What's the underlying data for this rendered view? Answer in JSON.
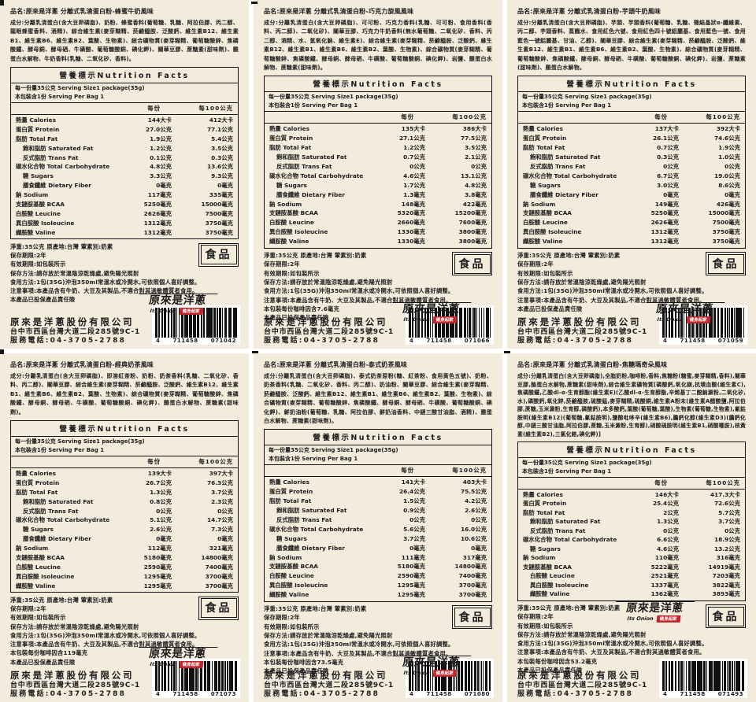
{
  "company": {
    "name": "原來是洋蔥股份有限公司",
    "address": "台中市西區台灣大道二段285號9C-1",
    "phone": "服務電話:04-3705-2788"
  },
  "logo": {
    "zh": "原來是洋蔥",
    "en": "Its Onion",
    "badge": "健身起家"
  },
  "food_badge": "食品",
  "table_header": {
    "title": "營養標示Nutrition Facts",
    "serving_line1": "每一份量35公克 Serving Size1 package(35g)",
    "serving_line2": "本包裝含1份 Serving Per Bag 1",
    "col_per_serving": "每份",
    "col_per_100g": "每100公克"
  },
  "common": {
    "net_weight": "淨重:35公克 原產地:台灣 葷素別:奶素",
    "shelf_life": "保存期限:2年",
    "expiry": "有效期限:如包裝所示",
    "storage": "保存方法:請存放於常溫陰涼乾燥處,避免陽光照射",
    "usage": "食用方法:1包(35G)沖泡350ml常溫水或冷開水,可依照個人喜好調整。",
    "warning": "注意事項:本產品含有牛奶、大豆及其製品,不適合對其過敏體質者食用。",
    "insurance": "本產品已投保產品責任險"
  },
  "labels": [
    {
      "product_name": "品名:原來是洋蔥 分離式乳清蛋白粉-蜂蜜牛奶風味",
      "ingredients": "成分:分離乳清蛋白(含大豆卵磷脂)、奶粉、蜂蜜香料(葡萄糖、乳糖、阿拉伯膠、丙二醇、龍眼蜂蜜香料、酒精)、綜合維生素(麥芽糊精、菸鹼醯胺、泛酸鈣、維生素B12、維生素B1、維生素B6、維生素B2、葉酸、生物素)、綜合礦物質(麥芽糊精、葡萄糖酸鋅、焦磷酸鐵、酵母銅、酵母硒、牛磺酸、葡萄糖酸銅、碘化鉀)、關華豆膠、蔗糖素(甜味劑)、雞蛋白水解物、牛奶香料(乳糖、二氧化矽、香料)。",
      "caffeine": null,
      "barcode": "4711458071042",
      "barcode_groups": [
        "4",
        "711458",
        "071042"
      ],
      "rows": [
        {
          "name": "熱量 Calories",
          "v1": "144大卡",
          "v2": "412大卡",
          "indent": false
        },
        {
          "name": "蛋白質 Protein",
          "v1": "27.0公克",
          "v2": "77.1公克",
          "indent": false
        },
        {
          "name": "脂肪 Total Fat",
          "v1": "1.9公克",
          "v2": "5.4公克",
          "indent": false
        },
        {
          "name": "飽和脂肪 Saturated Fat",
          "v1": "1.2公克",
          "v2": "3.5公克",
          "indent": true
        },
        {
          "name": "反式脂肪 Trans Fat",
          "v1": "0.1公克",
          "v2": "0.3公克",
          "indent": true
        },
        {
          "name": "碳水化合物 Total Carbohydrate",
          "v1": "4.8公克",
          "v2": "13.6公克",
          "indent": false
        },
        {
          "name": "糖 Sugars",
          "v1": "3.3公克",
          "v2": "9.3公克",
          "indent": true
        },
        {
          "name": "膳食纖維 Dietary Fiber",
          "v1": "0毫克",
          "v2": "0毫克",
          "indent": true
        },
        {
          "name": "鈉 Sodium",
          "v1": "117毫克",
          "v2": "335毫克",
          "indent": false
        },
        {
          "name": "支鏈胺基酸 BCAA",
          "v1": "5250毫克",
          "v2": "15000毫克",
          "indent": false
        },
        {
          "name": "白胺酸 Leucine",
          "v1": "2626毫克",
          "v2": "7500毫克",
          "indent": false
        },
        {
          "name": "異白胺酸 Isoleucine",
          "v1": "1312毫克",
          "v2": "3750毫克",
          "indent": false
        },
        {
          "name": "纈胺酸 Valine",
          "v1": "1312毫克",
          "v2": "3750毫克",
          "indent": false
        }
      ]
    },
    {
      "product_name": "品名:原來是洋蔥 分離式乳清蛋白粉-巧克力旋風風味",
      "ingredients": "成分:分離乳清蛋白(含大豆卵磷脂)、可可粉、巧克力香料(乳糖、可可粉、食用香料(香料、丙二醇)、二氧化矽)、關華豆膠、巧克力牛奶香料(無水葡萄糖、二氧化矽、香料、丙二醇、酒精、水、氫氧化鈉、維生素E)、綜合維生素(麥芽糊精、菸鹼醯胺、泛酸鈣、維生素B12、維生素B1、維生素B6、維生素B2、葉酸、生物素)、綜合礦物質(麥芽糊精、葡萄糖酸鋅、焦磷酸鐵、酵母銅、酵母硒、牛磺酸、葡萄糖酸銅、碘化鉀)、岩鹽、雞蛋白水解物、蔗糖素(甜味劑)。",
      "caffeine": "本包裝每份咖啡因含7.6毫克",
      "barcode": "4711458071066",
      "barcode_groups": [
        "4",
        "711458",
        "071066"
      ],
      "rows": [
        {
          "name": "熱量 Calories",
          "v1": "135大卡",
          "v2": "386大卡",
          "indent": false
        },
        {
          "name": "蛋白質 Protein",
          "v1": "27.1公克",
          "v2": "77.5公克",
          "indent": false
        },
        {
          "name": "脂肪 Total Fat",
          "v1": "1.2公克",
          "v2": "3.5公克",
          "indent": false
        },
        {
          "name": "飽和脂肪 Saturated Fat",
          "v1": "0.7公克",
          "v2": "2.1公克",
          "indent": true
        },
        {
          "name": "反式脂肪 Trans Fat",
          "v1": "0公克",
          "v2": "0公克",
          "indent": true
        },
        {
          "name": "碳水化合物 Total Carbohydrate",
          "v1": "4.6公克",
          "v2": "13.1公克",
          "indent": false
        },
        {
          "name": "糖 Sugars",
          "v1": "1.7公克",
          "v2": "4.8公克",
          "indent": true
        },
        {
          "name": "膳食纖維 Dietary Fiber",
          "v1": "1.3毫克",
          "v2": "3.8毫克",
          "indent": true
        },
        {
          "name": "鈉 Sodium",
          "v1": "148毫克",
          "v2": "422毫克",
          "indent": false
        },
        {
          "name": "支鏈胺基酸 BCAA",
          "v1": "5320毫克",
          "v2": "15200毫克",
          "indent": false
        },
        {
          "name": "白胺酸 Leucine",
          "v1": "2660毫克",
          "v2": "7600毫克",
          "indent": false
        },
        {
          "name": "異白胺酸 Isoleucine",
          "v1": "1330毫克",
          "v2": "3800毫克",
          "indent": false
        },
        {
          "name": "纈胺酸 Valine",
          "v1": "1330毫克",
          "v2": "3800毫克",
          "indent": false
        }
      ]
    },
    {
      "product_name": "品名:原來是洋蔥 分離式乳清蛋白粉-芋頭牛奶風味",
      "ingredients": "成分:分離乳清蛋白(含大豆卵磷脂)、芋頭、芋頭香料(葡萄糖、乳糖、微結晶狀α-纖維素、丙二醇、芋頭香料、蒸餾水、食用紅色六號、食用紅色四十號鋁麗基、食用藍色一號、食用藍色一號鋁麗基、甘油、乙醇)、關華豆膠、綜合維生素(麥芽糊精、菸鹼醯胺、泛酸鈣、維生素B12、維生素B1、維生素B6、維生素B2、葉酸、生物素)、綜合礦物質(麥芽糊精、葡萄糖酸鋅、焦磷酸鐵、酵母銅、酵母硒、牛磺酸、葡萄糖酸銅、碘化鉀)、岩鹽、蔗糖素(甜味劑)、雞蛋白水解物。",
      "caffeine": null,
      "barcode": "4711458071059",
      "barcode_groups": [
        "4",
        "711458",
        "071059"
      ],
      "rows": [
        {
          "name": "熱量 Calories",
          "v1": "137大卡",
          "v2": "392大卡",
          "indent": false
        },
        {
          "name": "蛋白質 Protein",
          "v1": "26.1公克",
          "v2": "74.6公克",
          "indent": false
        },
        {
          "name": "脂肪 Total Fat",
          "v1": "0.7公克",
          "v2": "1.9公克",
          "indent": false
        },
        {
          "name": "飽和脂肪 Saturated Fat",
          "v1": "0.3公克",
          "v2": "1.0公克",
          "indent": true
        },
        {
          "name": "反式脂肪 Trans Fat",
          "v1": "0公克",
          "v2": "0公克",
          "indent": true
        },
        {
          "name": "碳水化合物 Total Carbohydrate",
          "v1": "6.7公克",
          "v2": "19.0公克",
          "indent": false
        },
        {
          "name": "糖 Sugars",
          "v1": "3.0公克",
          "v2": "8.6公克",
          "indent": true
        },
        {
          "name": "膳食纖維 Dietary Fiber",
          "v1": "0毫克",
          "v2": "0毫克",
          "indent": true
        },
        {
          "name": "鈉 Sodium",
          "v1": "149毫克",
          "v2": "426毫克",
          "indent": false
        },
        {
          "name": "支鏈胺基酸 BCAA",
          "v1": "5250毫克",
          "v2": "15000毫克",
          "indent": false
        },
        {
          "name": "白胺酸 Leucine",
          "v1": "2626毫克",
          "v2": "7500毫克",
          "indent": false
        },
        {
          "name": "異白胺酸 Isoleucine",
          "v1": "1312毫克",
          "v2": "3750毫克",
          "indent": false
        },
        {
          "name": "纈胺酸 Valine",
          "v1": "1312毫克",
          "v2": "3750毫克",
          "indent": false
        }
      ]
    },
    {
      "product_name": "品名:原來是洋蔥 分離式乳清蛋白粉-經典奶茶風味",
      "ingredients": "成分:分離乳清蛋白(含大豆卵磷脂)、即溶紅茶粉、奶粉、奶茶香料(乳糖、二氧化矽、香料、丙二醇)、關華豆膠、綜合維生素(麥芽糊精、菸鹼醯胺、泛酸鈣、維生素B12、維生素B1、維生素B6、維生素B2、葉酸、生物素)、綜合礦物質(麥芽糊精、葡萄糖酸鋅、焦磷酸鐵、酵母銅、酵母硒、牛磺酸、葡萄糖酸銅、碘化鉀)、雞蛋白水解物、蔗糖素(甜味劑)。",
      "caffeine": "本包裝每份咖啡因含119毫克",
      "barcode": "4711458071073",
      "barcode_groups": [
        "4",
        "711458",
        "071073"
      ],
      "rows": [
        {
          "name": "熱量 Calories",
          "v1": "139大卡",
          "v2": "397大卡",
          "indent": false
        },
        {
          "name": "蛋白質 Protein",
          "v1": "26.7公克",
          "v2": "76.3公克",
          "indent": false
        },
        {
          "name": "脂肪 Total Fat",
          "v1": "1.3公克",
          "v2": "3.7公克",
          "indent": false
        },
        {
          "name": "飽和脂肪 Saturated Fat",
          "v1": "0.8公克",
          "v2": "2.3公克",
          "indent": true
        },
        {
          "name": "反式脂肪 Trans Fat",
          "v1": "0公克",
          "v2": "0公克",
          "indent": true
        },
        {
          "name": "碳水化合物 Total Carbohydrate",
          "v1": "5.1公克",
          "v2": "14.7公克",
          "indent": false
        },
        {
          "name": "糖 Sugars",
          "v1": "2.6公克",
          "v2": "7.3公克",
          "indent": true
        },
        {
          "name": "膳食纖維 Dietary Fiber",
          "v1": "0毫克",
          "v2": "0毫克",
          "indent": true
        },
        {
          "name": "鈉 Sodium",
          "v1": "112毫克",
          "v2": "321毫克",
          "indent": false
        },
        {
          "name": "支鏈胺基酸 BCAA",
          "v1": "5180毫克",
          "v2": "14800毫克",
          "indent": false
        },
        {
          "name": "白胺酸 Leucine",
          "v1": "2590毫克",
          "v2": "7400毫克",
          "indent": false
        },
        {
          "name": "異白胺酸 Isoleucine",
          "v1": "1295毫克",
          "v2": "3700毫克",
          "indent": false
        },
        {
          "name": "纈胺酸 Valine",
          "v1": "1295毫克",
          "v2": "3700毫克",
          "indent": false
        }
      ]
    },
    {
      "product_name": "品名:原來是洋蔥 分離式乳清蛋白粉-泰式奶茶風味",
      "ingredients": "成分:分離乳清蛋白(含大豆卵磷脂)、泰式奶茶原粉(糖、紅茶粉、食用黃色五號)、奶粉、奶茶香料(乳糖、二氧化矽、香料、丙二醇)、奶油粉、關華豆膠、綜合維生素(麥芽糊精、菸鹼醯胺、泛酸鈣、維生素B12、維生素B1、維生素B6、維生素B2、葉酸、生物素)、綜合礦物質(麥芽糊精、葡萄糖酸鋅、焦磷酸鐵、酵母銅、酵母硒、牛磺酸、葡萄糖酸銅、碘化鉀)、鮮奶油粉(葡萄糖、乳糖、阿拉伯膠、鮮奶油香料、中鏈三酸甘油脂、酒精)、雞蛋白水解物、蔗糖素(甜味劑)。",
      "caffeine": "本包裝每份咖啡因含73.5毫克",
      "barcode": "4711458071080",
      "barcode_groups": [
        "4",
        "711458",
        "071080"
      ],
      "rows": [
        {
          "name": "熱量 Calories",
          "v1": "141大卡",
          "v2": "403大卡",
          "indent": false
        },
        {
          "name": "蛋白質 Protein",
          "v1": "26.4公克",
          "v2": "75.5公克",
          "indent": false
        },
        {
          "name": "脂肪 Total Fat",
          "v1": "1.5公克",
          "v2": "4.2公克",
          "indent": false
        },
        {
          "name": "飽和脂肪 Saturated Fat",
          "v1": "0.9公克",
          "v2": "2.6公克",
          "indent": true
        },
        {
          "name": "反式脂肪 Trans Fat",
          "v1": "0公克",
          "v2": "0公克",
          "indent": true
        },
        {
          "name": "碳水化合物 Total Carbohydrate",
          "v1": "5.6公克",
          "v2": "16.0公克",
          "indent": false
        },
        {
          "name": "糖 Sugars",
          "v1": "3.7公克",
          "v2": "10.6公克",
          "indent": true
        },
        {
          "name": "膳食纖維 Dietary Fiber",
          "v1": "0毫克",
          "v2": "0毫克",
          "indent": true
        },
        {
          "name": "鈉 Sodium",
          "v1": "111毫克",
          "v2": "317毫克",
          "indent": false
        },
        {
          "name": "支鏈胺基酸 BCAA",
          "v1": "5180毫克",
          "v2": "14800毫克",
          "indent": false
        },
        {
          "name": "白胺酸 Leucine",
          "v1": "2590毫克",
          "v2": "7400毫克",
          "indent": false
        },
        {
          "name": "異白胺酸 Isoleucine",
          "v1": "1295毫克",
          "v2": "3700毫克",
          "indent": false
        },
        {
          "name": "纈胺酸 Valine",
          "v1": "1295毫克",
          "v2": "3700毫克",
          "indent": false
        }
      ]
    },
    {
      "product_name": "品名:原來是洋蔥 分離式乳清蛋白粉-焦糖瑪奇朵風味",
      "ingredients": "成分:分離乳清蛋白(含大豆卵磷脂),全脂奶粉,咖啡粉,香料,焦糖粉(糖蜜,麥芽糊精,香料),關華豆膠,酪蛋白水解物,蔗糖素(甜味劑),綜合維生素礦物質[磷酸鈣,氧化鎂,抗壞血酸(維生素C),焦磷酸鐵,乙酸dl-α-生育醇酯(維生素E)(乙酸dl-α-生育醇酯,辛烯基丁二酸鈉澱粉,二氧化矽,水),磷酸鈣,氧化鋅,菸鹼醯胺,硫酸錳,麥芽糊精,硫酸銅,維生素A粉末(維生素A醋酸鹽,阿拉伯膠,蔗糖,玉米澱粉,生育醇,磷酸鈣),本多酸鈣,葉酸(葡萄糖,葉酸),生物素(葡萄糖,生物素),氰鈷胺明(維生素B12)(葡萄糖,氰鈷胺明),鹽酸吡哆辛(維生素B6),膽鈣化醇(維生素D3)(膽鈣化醇,中鏈三酸甘油脂,阿拉伯膠,蔗糖,玉米澱粉,生育醇),硝酸硫胺明(維生素B1,硝酸噻胺),核黃素(維生素B2),三氯化鉻,碘化鉀)]",
      "caffeine": "本包裝每份咖啡因含53.2毫克",
      "barcode": "4711458071493",
      "barcode_groups": [
        "4",
        "711458",
        "071493"
      ],
      "rows": [
        {
          "name": "熱量 Calories",
          "v1": "146大卡",
          "v2": "417.3大卡",
          "indent": false
        },
        {
          "name": "蛋白質 Protein",
          "v1": "25.4公克",
          "v2": "72.6公克",
          "indent": false
        },
        {
          "name": "脂肪 Total Fat",
          "v1": "2公克",
          "v2": "5.7公克",
          "indent": false
        },
        {
          "name": "飽和脂肪 Saturated Fat",
          "v1": "1.3公克",
          "v2": "3.7公克",
          "indent": true
        },
        {
          "name": "反式脂肪 Trans Fat",
          "v1": "0公克",
          "v2": "0公克",
          "indent": true
        },
        {
          "name": "碳水化合物 Total Carbohydrate",
          "v1": "6.6公克",
          "v2": "18.9公克",
          "indent": false
        },
        {
          "name": "糖 Sugars",
          "v1": "4.6公克",
          "v2": "13.2公克",
          "indent": true
        },
        {
          "name": "鈉 Sodium",
          "v1": "110毫克",
          "v2": "316毫克",
          "indent": false
        },
        {
          "name": "支鏈胺基酸 BCAA",
          "v1": "5222毫克",
          "v2": "14919毫克",
          "indent": false
        },
        {
          "name": "白胺酸 Leucine",
          "v1": "2521毫克",
          "v2": "7203毫克",
          "indent": true
        },
        {
          "name": "異白胺酸 Isoleucine",
          "v1": "1337毫克",
          "v2": "3822毫克",
          "indent": true
        },
        {
          "name": "纈胺酸 Valine",
          "v1": "1362毫克",
          "v2": "3893毫克",
          "indent": true
        }
      ]
    }
  ]
}
